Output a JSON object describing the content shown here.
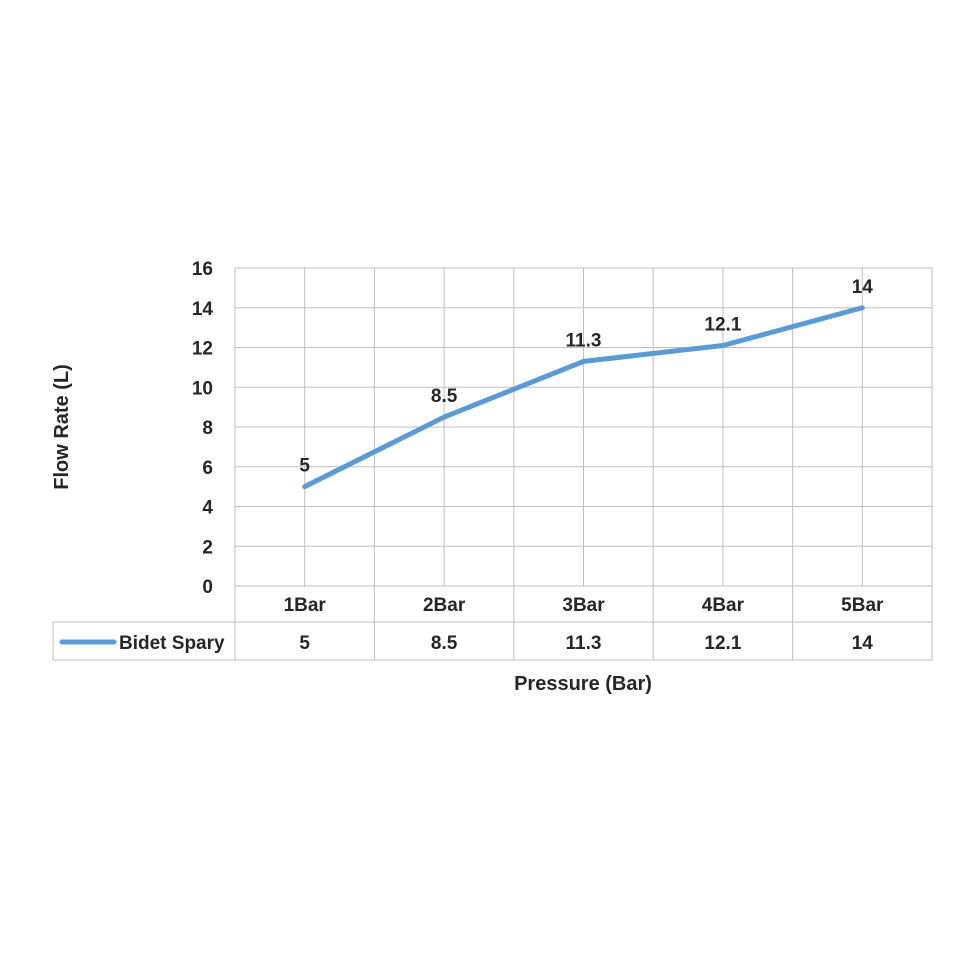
{
  "chart_data": {
    "type": "line",
    "title": "",
    "xlabel": "Pressure (Bar)",
    "ylabel": "Flow Rate (L)",
    "categories": [
      "1Bar",
      "2Bar",
      "3Bar",
      "4Bar",
      "5Bar"
    ],
    "series": [
      {
        "name": "Bidet Spary",
        "values": [
          5,
          8.5,
          11.3,
          12.1,
          14
        ],
        "color": "#5B9BD5"
      }
    ],
    "ylim": [
      0,
      16
    ],
    "yticks": [
      0,
      2,
      4,
      6,
      8,
      10,
      12,
      14,
      16
    ],
    "grid": true,
    "data_labels": true,
    "data_table": true,
    "legend": "in data table"
  }
}
